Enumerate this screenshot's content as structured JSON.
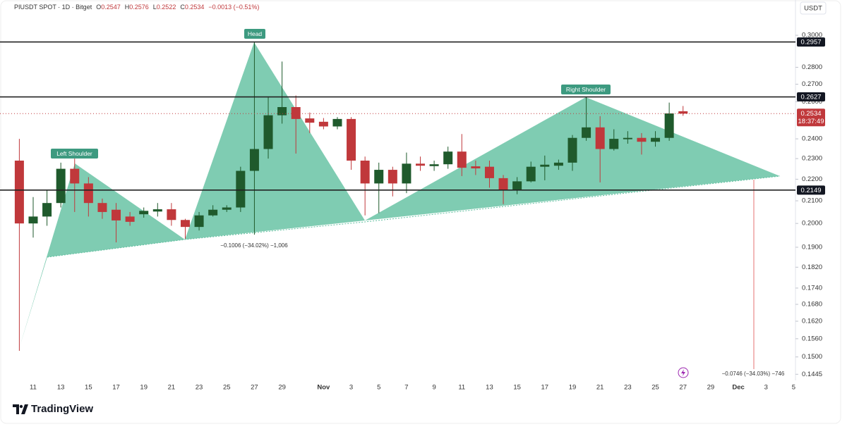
{
  "header": {
    "symbol": "PIUSDT SPOT · 1D · Bitget",
    "ohlc": [
      [
        "O",
        "0.2547"
      ],
      [
        "H",
        "0.2576"
      ],
      [
        "L",
        "0.2522"
      ],
      [
        "C",
        "0.2534"
      ]
    ],
    "change": "−0.0013 (−0.51%)"
  },
  "footer": {
    "brand": "TradingView"
  },
  "chart_data": {
    "type": "candlestick",
    "currency": "USDT",
    "log_scale": true,
    "grid": false,
    "up_color": "#1f5a2c",
    "down_color": "#c0383b",
    "pattern_color": "#5fbf9f",
    "categories": [
      null,
      "11",
      null,
      "13",
      null,
      "15",
      null,
      "17",
      null,
      "19",
      null,
      "21",
      null,
      "23",
      null,
      "25",
      null,
      "27",
      null,
      "29",
      null,
      null,
      "Nov",
      null,
      "3",
      null,
      "5",
      null,
      "7",
      null,
      "9",
      null,
      "11",
      null,
      "13",
      null,
      "15",
      null,
      "17",
      null,
      "19",
      null,
      "21",
      null,
      "23",
      null,
      "25",
      null,
      "27",
      null,
      "29",
      null,
      "Dec",
      null,
      "3",
      null,
      "5"
    ],
    "open": [
      0.229,
      0.2,
      0.203,
      0.209,
      0.225,
      0.218,
      0.209,
      0.206,
      0.203,
      0.204,
      0.2052,
      0.2062,
      0.2015,
      0.1985,
      0.2035,
      0.206,
      0.207,
      0.224,
      0.2348,
      0.2525,
      0.257,
      0.2508,
      0.249,
      0.2465,
      0.2505,
      0.229,
      0.218,
      0.2245,
      0.218,
      0.2275,
      0.2263,
      0.2272,
      0.2335,
      0.2262,
      0.226,
      0.2205,
      0.215,
      0.219,
      0.226,
      0.2265,
      0.228,
      0.2405,
      0.246,
      0.2348,
      0.2398,
      0.2405,
      0.2385,
      0.2405,
      0.2547,
      null,
      null,
      null,
      null,
      null,
      null,
      null,
      null
    ],
    "high": [
      0.24,
      0.2117,
      0.215,
      0.228,
      0.23,
      0.221,
      0.211,
      0.209,
      0.205,
      0.207,
      0.209,
      0.209,
      0.202,
      0.205,
      0.208,
      0.208,
      0.226,
      0.2957,
      0.2625,
      0.2835,
      0.2635,
      0.254,
      0.251,
      0.2515,
      0.2515,
      0.231,
      0.228,
      0.226,
      0.233,
      0.231,
      0.229,
      0.236,
      0.2425,
      0.229,
      0.229,
      0.222,
      0.221,
      0.2285,
      0.2315,
      0.2295,
      0.242,
      0.2627,
      0.252,
      0.245,
      0.244,
      0.243,
      0.244,
      0.2595,
      0.2576,
      null,
      null,
      null,
      null,
      null,
      null,
      null,
      null
    ],
    "low": [
      0.152,
      0.194,
      0.199,
      0.207,
      0.205,
      0.203,
      0.202,
      0.192,
      0.199,
      0.2025,
      0.203,
      0.199,
      0.1935,
      0.197,
      0.203,
      0.205,
      0.205,
      0.1952,
      0.23,
      0.248,
      0.2325,
      0.243,
      0.245,
      0.245,
      0.2245,
      0.2035,
      0.2045,
      0.212,
      0.2135,
      0.224,
      0.224,
      0.225,
      0.2215,
      0.222,
      0.216,
      0.2085,
      0.213,
      0.2185,
      0.2195,
      0.2245,
      0.224,
      0.239,
      0.2185,
      0.234,
      0.2375,
      0.232,
      0.236,
      0.239,
      0.2522,
      null,
      null,
      null,
      null,
      null,
      null,
      null,
      null
    ],
    "close": [
      0.2,
      0.203,
      0.209,
      0.225,
      0.218,
      0.209,
      0.205,
      0.2013,
      0.2007,
      0.2055,
      0.2062,
      0.2015,
      0.1985,
      0.2035,
      0.206,
      0.207,
      0.224,
      0.2348,
      0.2525,
      0.257,
      0.2505,
      0.2485,
      0.2465,
      0.2505,
      0.229,
      0.218,
      0.2245,
      0.218,
      0.2275,
      0.2265,
      0.2272,
      0.2335,
      0.2255,
      0.2252,
      0.2205,
      0.215,
      0.219,
      0.226,
      0.227,
      0.228,
      0.2405,
      0.246,
      0.2348,
      0.24,
      0.2405,
      0.2385,
      0.2405,
      0.2535,
      0.2534,
      null,
      null,
      null,
      null,
      null,
      null,
      null,
      null
    ],
    "ylim": [
      0.1426,
      0.3198
    ],
    "yticks": [
      {
        "value": 0.3,
        "label": "0.3000"
      },
      {
        "value": 0.28,
        "label": "0.2800"
      },
      {
        "value": 0.27,
        "label": "0.2700"
      },
      {
        "value": 0.26,
        "label": "0.2600"
      },
      {
        "value": 0.24,
        "label": "0.2400"
      },
      {
        "value": 0.23,
        "label": "0.2300"
      },
      {
        "value": 0.22,
        "label": "0.2200"
      },
      {
        "value": 0.21,
        "label": "0.2100"
      },
      {
        "value": 0.2,
        "label": "0.2000"
      },
      {
        "value": 0.19,
        "label": "0.1900"
      },
      {
        "value": 0.182,
        "label": "0.1820"
      },
      {
        "value": 0.174,
        "label": "0.1740"
      },
      {
        "value": 0.168,
        "label": "0.1680"
      },
      {
        "value": 0.162,
        "label": "0.1620"
      },
      {
        "value": 0.156,
        "label": "0.1560"
      },
      {
        "value": 0.15,
        "label": "0.1500"
      },
      0.1445
    ],
    "levels": [
      0.2957,
      0.2627,
      0.2149
    ],
    "last_price": {
      "value": 0.2534,
      "countdown": "18:37:49"
    },
    "annotations": [
      "Left Shoulder",
      "Head",
      "Right Shoulder"
    ],
    "measurements": [
      "−0.1006 (−34.02%) −1,006",
      "−0.0746 (−34.03%) −746"
    ]
  }
}
